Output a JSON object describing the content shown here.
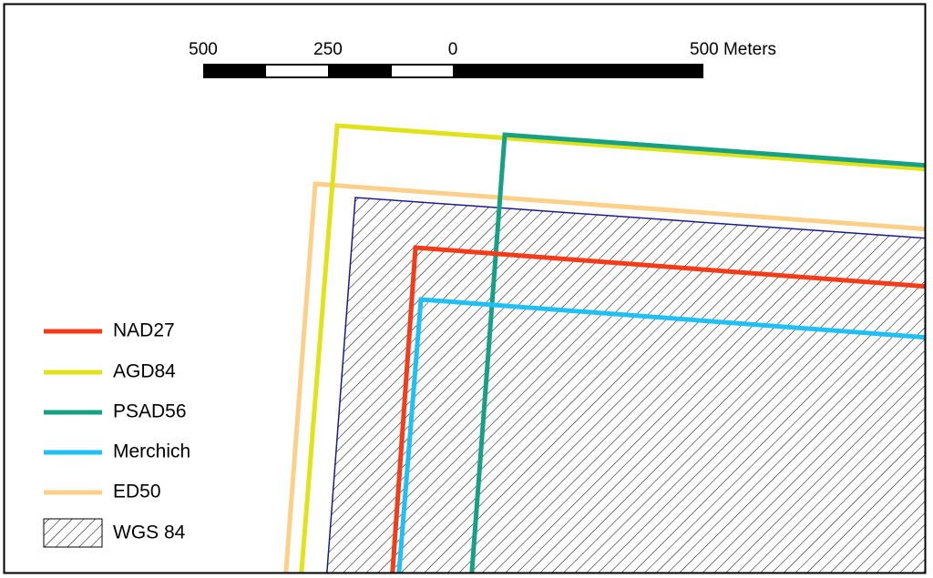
{
  "scale_bar": {
    "labels": [
      "500",
      "250",
      "0",
      "500 Meters"
    ]
  },
  "legend": [
    {
      "label": "NAD27"
    },
    {
      "label": "AGD84"
    },
    {
      "label": "PSAD56"
    },
    {
      "label": "Merchich"
    },
    {
      "label": "ED50"
    },
    {
      "label": "WGS 84"
    }
  ]
}
